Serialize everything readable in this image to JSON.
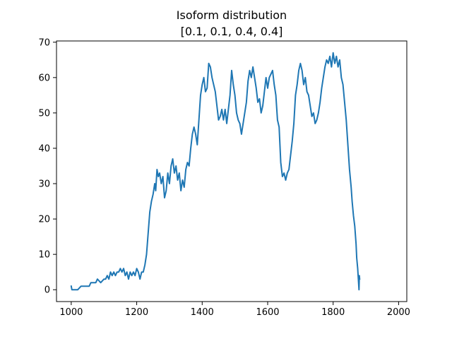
{
  "chart_data": {
    "type": "line",
    "title": "Isoform distribution",
    "subtitle": "[0.1, 0.1, 0.4, 0.4]",
    "xlabel": "",
    "ylabel": "",
    "xlim": [
      955,
      2025
    ],
    "ylim": [
      -3.35,
      70.35
    ],
    "grid": false,
    "legend": null,
    "x_ticks": [
      1000,
      1200,
      1400,
      1600,
      1800,
      2000
    ],
    "y_ticks": [
      0,
      10,
      20,
      30,
      40,
      50,
      60,
      70
    ],
    "series": [
      {
        "name": "distribution",
        "color": "#1f77b4",
        "points": [
          [
            1000,
            1
          ],
          [
            1002,
            0
          ],
          [
            1010,
            0
          ],
          [
            1020,
            0
          ],
          [
            1030,
            1
          ],
          [
            1040,
            1
          ],
          [
            1055,
            1
          ],
          [
            1060,
            2
          ],
          [
            1075,
            2
          ],
          [
            1080,
            3
          ],
          [
            1090,
            2
          ],
          [
            1100,
            3
          ],
          [
            1105,
            3
          ],
          [
            1110,
            4
          ],
          [
            1115,
            3
          ],
          [
            1120,
            5
          ],
          [
            1125,
            4
          ],
          [
            1130,
            5
          ],
          [
            1135,
            4
          ],
          [
            1140,
            5
          ],
          [
            1145,
            5
          ],
          [
            1150,
            6
          ],
          [
            1155,
            5
          ],
          [
            1160,
            6
          ],
          [
            1165,
            4
          ],
          [
            1170,
            5
          ],
          [
            1175,
            3
          ],
          [
            1180,
            5
          ],
          [
            1185,
            4
          ],
          [
            1190,
            5
          ],
          [
            1195,
            4
          ],
          [
            1200,
            6
          ],
          [
            1205,
            5
          ],
          [
            1210,
            3
          ],
          [
            1215,
            5
          ],
          [
            1220,
            5
          ],
          [
            1225,
            7
          ],
          [
            1230,
            10
          ],
          [
            1235,
            16
          ],
          [
            1240,
            22
          ],
          [
            1245,
            25
          ],
          [
            1250,
            27
          ],
          [
            1255,
            30
          ],
          [
            1258,
            28
          ],
          [
            1262,
            34
          ],
          [
            1266,
            32
          ],
          [
            1270,
            33
          ],
          [
            1275,
            30
          ],
          [
            1280,
            32
          ],
          [
            1285,
            26
          ],
          [
            1290,
            28
          ],
          [
            1295,
            33
          ],
          [
            1300,
            30
          ],
          [
            1305,
            35
          ],
          [
            1310,
            37
          ],
          [
            1315,
            33
          ],
          [
            1320,
            35
          ],
          [
            1325,
            31
          ],
          [
            1330,
            33
          ],
          [
            1335,
            28
          ],
          [
            1340,
            31
          ],
          [
            1345,
            29
          ],
          [
            1350,
            34
          ],
          [
            1355,
            36
          ],
          [
            1360,
            35
          ],
          [
            1365,
            40
          ],
          [
            1370,
            44
          ],
          [
            1375,
            46
          ],
          [
            1380,
            44
          ],
          [
            1385,
            41
          ],
          [
            1390,
            48
          ],
          [
            1395,
            55
          ],
          [
            1400,
            58
          ],
          [
            1405,
            60
          ],
          [
            1410,
            56
          ],
          [
            1415,
            57
          ],
          [
            1420,
            64
          ],
          [
            1425,
            63
          ],
          [
            1430,
            60
          ],
          [
            1435,
            58
          ],
          [
            1440,
            56
          ],
          [
            1445,
            52
          ],
          [
            1450,
            48
          ],
          [
            1455,
            49
          ],
          [
            1460,
            51
          ],
          [
            1465,
            48
          ],
          [
            1470,
            51
          ],
          [
            1475,
            47
          ],
          [
            1480,
            51
          ],
          [
            1485,
            55
          ],
          [
            1490,
            62
          ],
          [
            1495,
            58
          ],
          [
            1500,
            55
          ],
          [
            1505,
            50
          ],
          [
            1510,
            48
          ],
          [
            1515,
            47
          ],
          [
            1520,
            44
          ],
          [
            1525,
            47
          ],
          [
            1530,
            50
          ],
          [
            1535,
            53
          ],
          [
            1540,
            59
          ],
          [
            1545,
            62
          ],
          [
            1550,
            60
          ],
          [
            1555,
            63
          ],
          [
            1560,
            60
          ],
          [
            1565,
            57
          ],
          [
            1570,
            53
          ],
          [
            1575,
            54
          ],
          [
            1580,
            50
          ],
          [
            1585,
            52
          ],
          [
            1590,
            56
          ],
          [
            1595,
            60
          ],
          [
            1600,
            57
          ],
          [
            1605,
            60
          ],
          [
            1610,
            61
          ],
          [
            1615,
            62
          ],
          [
            1620,
            58
          ],
          [
            1625,
            55
          ],
          [
            1630,
            48
          ],
          [
            1635,
            46
          ],
          [
            1640,
            36
          ],
          [
            1645,
            32
          ],
          [
            1650,
            33
          ],
          [
            1655,
            31
          ],
          [
            1660,
            33
          ],
          [
            1665,
            34
          ],
          [
            1670,
            38
          ],
          [
            1675,
            42
          ],
          [
            1680,
            47
          ],
          [
            1685,
            55
          ],
          [
            1690,
            58
          ],
          [
            1695,
            62
          ],
          [
            1700,
            64
          ],
          [
            1705,
            62
          ],
          [
            1710,
            58
          ],
          [
            1715,
            60
          ],
          [
            1720,
            56
          ],
          [
            1725,
            55
          ],
          [
            1730,
            52
          ],
          [
            1735,
            49
          ],
          [
            1740,
            50
          ],
          [
            1745,
            47
          ],
          [
            1750,
            48
          ],
          [
            1755,
            50
          ],
          [
            1760,
            53
          ],
          [
            1765,
            57
          ],
          [
            1770,
            60
          ],
          [
            1775,
            63
          ],
          [
            1780,
            65
          ],
          [
            1785,
            64
          ],
          [
            1790,
            66
          ],
          [
            1795,
            63
          ],
          [
            1800,
            67
          ],
          [
            1805,
            64
          ],
          [
            1810,
            66
          ],
          [
            1815,
            63
          ],
          [
            1820,
            65
          ],
          [
            1825,
            60
          ],
          [
            1830,
            58
          ],
          [
            1835,
            53
          ],
          [
            1840,
            48
          ],
          [
            1845,
            41
          ],
          [
            1850,
            34
          ],
          [
            1855,
            29
          ],
          [
            1858,
            25
          ],
          [
            1862,
            21
          ],
          [
            1866,
            18
          ],
          [
            1870,
            13
          ],
          [
            1872,
            9
          ],
          [
            1875,
            6
          ],
          [
            1877,
            3
          ],
          [
            1879,
            0
          ],
          [
            1880,
            4
          ],
          [
            1881,
            3
          ]
        ]
      }
    ]
  }
}
